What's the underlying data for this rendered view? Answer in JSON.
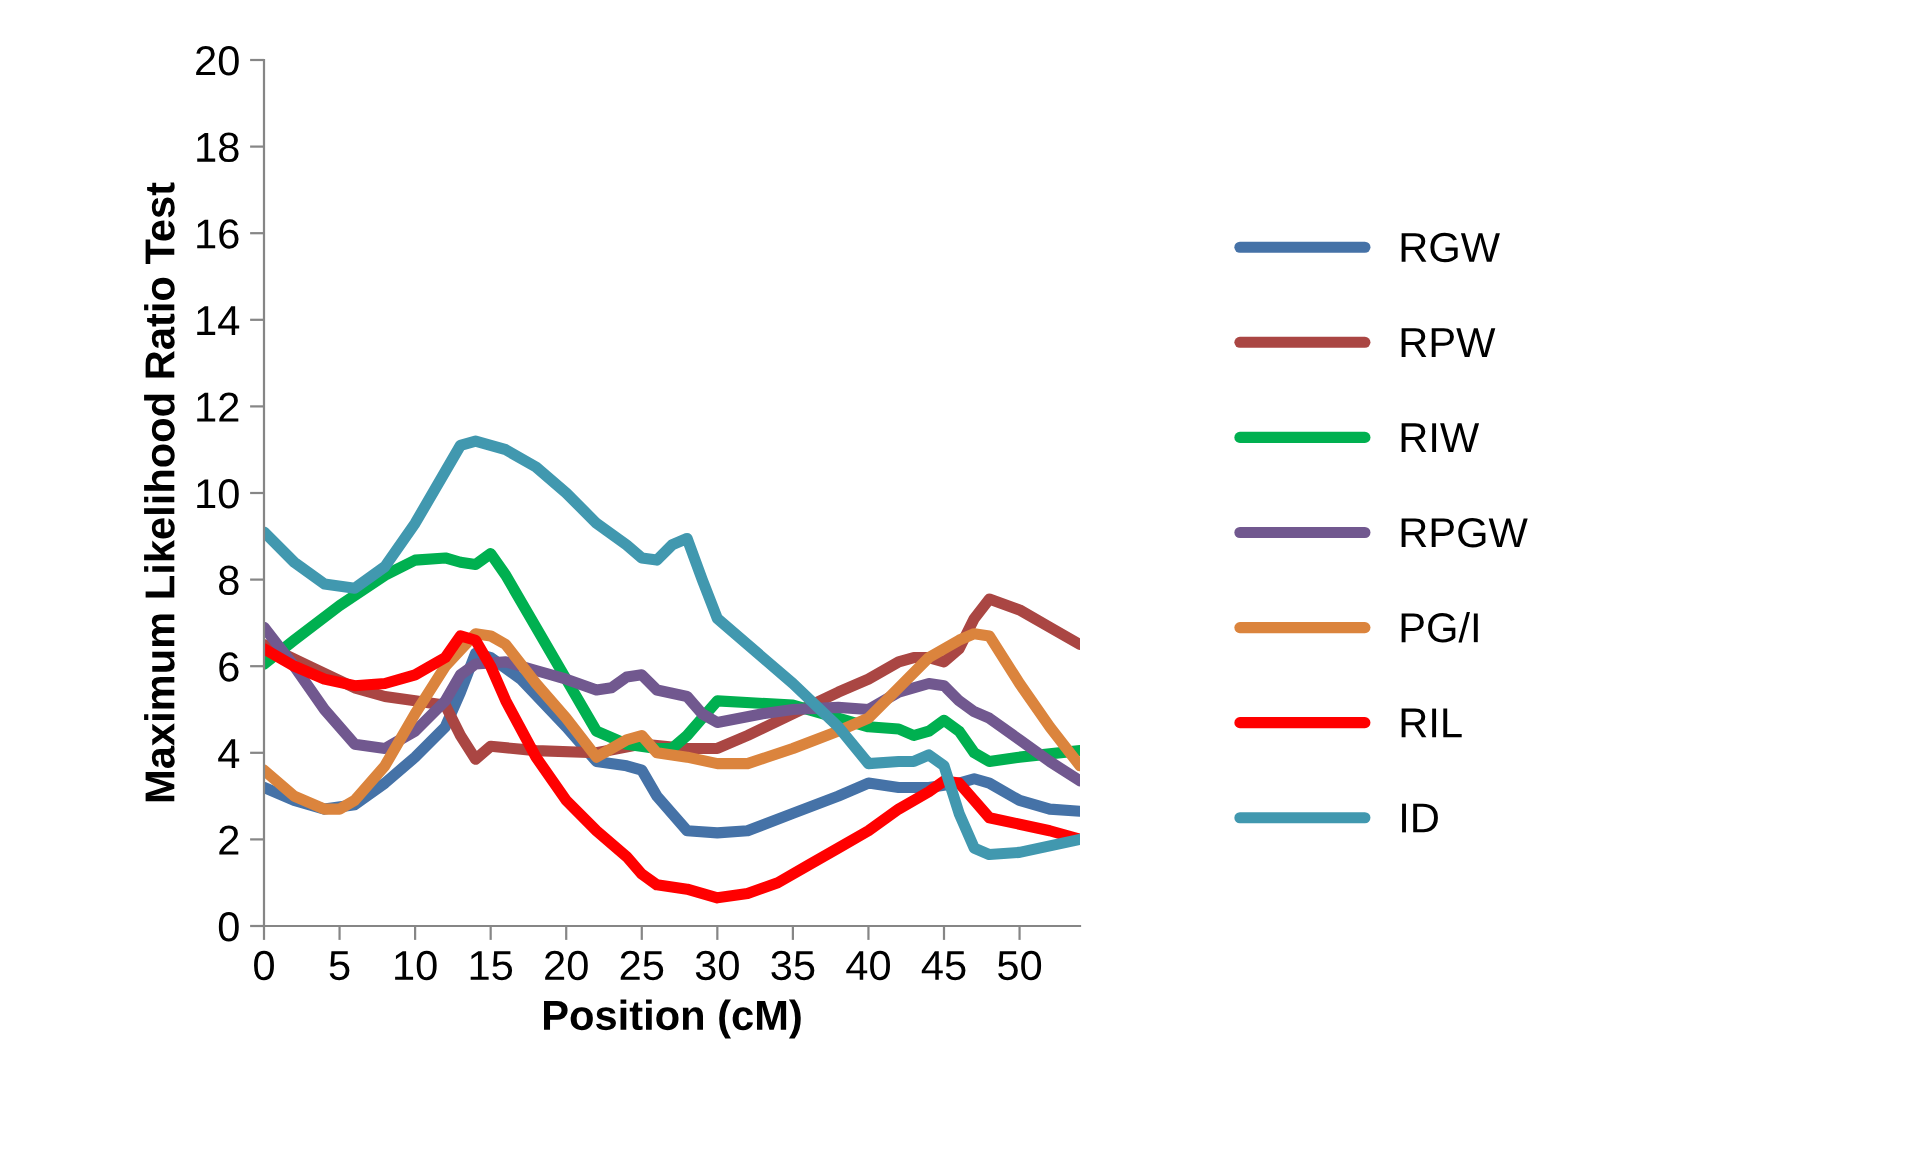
{
  "chart_data": {
    "type": "line",
    "xlabel": "Position (cM)",
    "ylabel": "Maximum Likelihood Ratio Test",
    "xlim": [
      0,
      54
    ],
    "xticks": [
      0,
      5,
      10,
      15,
      20,
      25,
      30,
      35,
      40,
      45,
      50
    ],
    "ylim": [
      0,
      20
    ],
    "yticks": [
      0,
      2,
      4,
      6,
      8,
      10,
      12,
      14,
      16,
      18,
      20
    ],
    "grid": false,
    "legend": "right",
    "marker": "none",
    "line_style": "solid",
    "series": [
      {
        "name": "RGW",
        "color": "#4572a7",
        "x": [
          0,
          2,
          4,
          6,
          8,
          10,
          12,
          13,
          14,
          15,
          17,
          20,
          22,
          24,
          25,
          26,
          28,
          30,
          32,
          35,
          38,
          40,
          42,
          44,
          46,
          47,
          48,
          50,
          52,
          54
        ],
        "values": [
          3.2,
          2.9,
          2.7,
          2.8,
          3.3,
          3.9,
          4.6,
          5.4,
          6.3,
          6.2,
          5.7,
          4.6,
          3.8,
          3.7,
          3.6,
          3.0,
          2.2,
          2.15,
          2.2,
          2.6,
          3.0,
          3.3,
          3.2,
          3.2,
          3.3,
          3.4,
          3.3,
          2.9,
          2.7,
          2.65
        ]
      },
      {
        "name": "RPW",
        "color": "#aa4643",
        "x": [
          0,
          3,
          6,
          8,
          10,
          12,
          13,
          14,
          15,
          18,
          22,
          25,
          28,
          30,
          32,
          35,
          38,
          40,
          42,
          43,
          44,
          45,
          46,
          47,
          48,
          50,
          52,
          54
        ],
        "values": [
          6.5,
          6.0,
          5.5,
          5.3,
          5.2,
          5.1,
          4.4,
          3.85,
          4.15,
          4.05,
          4.0,
          4.2,
          4.1,
          4.1,
          4.4,
          4.9,
          5.4,
          5.7,
          6.1,
          6.2,
          6.2,
          6.1,
          6.4,
          7.1,
          7.55,
          7.3,
          6.9,
          6.5
        ]
      },
      {
        "name": "RIW",
        "color": "#00b050",
        "x": [
          0,
          2,
          5,
          8,
          10,
          12,
          13,
          14,
          15,
          16,
          18,
          20,
          22,
          24,
          26,
          27,
          28,
          29,
          30,
          35,
          40,
          42,
          43,
          44,
          45,
          46,
          47,
          48,
          50,
          54
        ],
        "values": [
          6.05,
          6.6,
          7.4,
          8.1,
          8.45,
          8.5,
          8.4,
          8.35,
          8.6,
          8.1,
          6.9,
          5.7,
          4.5,
          4.2,
          4.1,
          4.1,
          4.4,
          4.8,
          5.2,
          5.1,
          4.6,
          4.55,
          4.4,
          4.5,
          4.75,
          4.5,
          4.0,
          3.8,
          3.9,
          4.05
        ]
      },
      {
        "name": "RPGW",
        "color": "#71588f",
        "x": [
          0,
          2,
          4,
          6,
          8,
          10,
          12,
          13,
          14,
          16,
          18,
          20,
          22,
          23,
          24,
          25,
          26,
          28,
          29,
          30,
          33,
          35,
          38,
          40,
          42,
          44,
          45,
          46,
          47,
          48,
          50,
          52,
          54
        ],
        "values": [
          6.9,
          6.0,
          5.0,
          4.2,
          4.1,
          4.5,
          5.2,
          5.8,
          6.05,
          6.1,
          5.9,
          5.7,
          5.45,
          5.5,
          5.75,
          5.8,
          5.45,
          5.3,
          4.9,
          4.7,
          4.9,
          5.0,
          5.05,
          5.0,
          5.4,
          5.6,
          5.55,
          5.2,
          4.95,
          4.8,
          4.3,
          3.8,
          3.35
        ]
      },
      {
        "name": "PG/I",
        "color": "#db843d",
        "x": [
          0,
          2,
          4,
          5,
          6,
          8,
          10,
          12,
          14,
          15,
          16,
          18,
          20,
          22,
          24,
          25,
          26,
          28,
          30,
          32,
          35,
          38,
          40,
          42,
          44,
          46,
          47,
          48,
          50,
          52,
          54
        ],
        "values": [
          3.6,
          3.0,
          2.7,
          2.7,
          2.9,
          3.7,
          4.9,
          6.0,
          6.75,
          6.7,
          6.5,
          5.6,
          4.8,
          3.9,
          4.3,
          4.4,
          4.0,
          3.9,
          3.75,
          3.75,
          4.1,
          4.5,
          4.8,
          5.5,
          6.2,
          6.6,
          6.75,
          6.7,
          5.6,
          4.6,
          3.7
        ]
      },
      {
        "name": "RIL",
        "color": "#ff0000",
        "x": [
          0,
          2,
          4,
          6,
          8,
          10,
          12,
          13,
          14,
          15,
          16,
          18,
          20,
          22,
          24,
          25,
          26,
          28,
          30,
          32,
          34,
          36,
          38,
          40,
          42,
          44,
          45,
          46,
          47,
          48,
          50,
          52,
          54
        ],
        "values": [
          6.4,
          6.0,
          5.7,
          5.55,
          5.6,
          5.8,
          6.2,
          6.7,
          6.6,
          6.0,
          5.2,
          3.9,
          2.9,
          2.2,
          1.6,
          1.2,
          0.95,
          0.85,
          0.65,
          0.75,
          1.0,
          1.4,
          1.8,
          2.2,
          2.7,
          3.1,
          3.35,
          3.3,
          2.9,
          2.5,
          2.35,
          2.2,
          2.0
        ]
      },
      {
        "name": "ID",
        "color": "#4198af",
        "x": [
          0,
          2,
          4,
          6,
          8,
          10,
          12,
          13,
          14,
          16,
          18,
          20,
          22,
          24,
          25,
          26,
          27,
          28,
          29,
          30,
          32,
          35,
          38,
          40,
          42,
          43,
          44,
          45,
          46,
          47,
          48,
          50,
          54
        ],
        "values": [
          9.1,
          8.4,
          7.9,
          7.8,
          8.3,
          9.3,
          10.5,
          11.1,
          11.2,
          11.0,
          10.6,
          10.0,
          9.3,
          8.8,
          8.5,
          8.45,
          8.8,
          8.95,
          8.0,
          7.1,
          6.5,
          5.6,
          4.6,
          3.75,
          3.8,
          3.8,
          3.95,
          3.7,
          2.6,
          1.8,
          1.65,
          1.7,
          2.0
        ]
      }
    ]
  }
}
